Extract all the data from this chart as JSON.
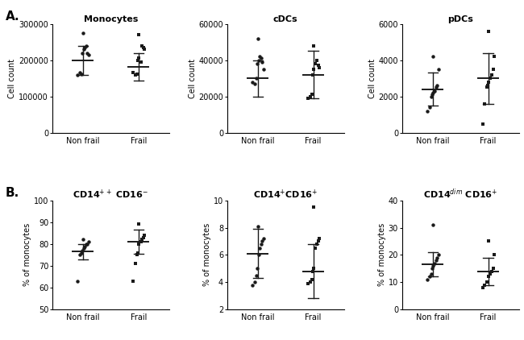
{
  "panel_A": {
    "Monocytes": {
      "Non frail": {
        "points": [
          160000,
          165000,
          162000,
          220000,
          230000,
          235000,
          240000,
          220000,
          215000,
          275000
        ],
        "mean": 200000,
        "sd": 40000
      },
      "Frail": {
        "points": [
          165000,
          160000,
          162000,
          200000,
          205000,
          195000,
          240000,
          235000,
          230000,
          270000
        ],
        "mean": 182000,
        "sd": 38000
      },
      "ylabel": "Cell count",
      "ylim": [
        0,
        300000
      ],
      "yticks": [
        0,
        100000,
        200000,
        300000
      ],
      "title": "Monocytes"
    },
    "cDCs": {
      "Non frail": {
        "points": [
          28000,
          27000,
          30000,
          38000,
          40000,
          42000,
          41000,
          39000,
          35000,
          52000
        ],
        "mean": 30000,
        "sd": 10000
      },
      "Frail": {
        "points": [
          19000,
          20000,
          21000,
          32000,
          35000,
          38000,
          40000,
          37000,
          36000,
          48000
        ],
        "mean": 32000,
        "sd": 13000
      },
      "ylabel": "Cell count",
      "ylim": [
        0,
        60000
      ],
      "yticks": [
        0,
        20000,
        40000,
        60000
      ],
      "title": "cDCs"
    },
    "pDCs": {
      "Non frail": {
        "points": [
          1200,
          1400,
          2000,
          2100,
          2200,
          2300,
          2500,
          2600,
          3500,
          4200
        ],
        "mean": 2400,
        "sd": 900
      },
      "Frail": {
        "points": [
          500,
          1600,
          2500,
          2600,
          2800,
          3000,
          3200,
          3500,
          4200,
          5600
        ],
        "mean": 3000,
        "sd": 1400
      },
      "ylabel": "Cell count",
      "ylim": [
        0,
        6000
      ],
      "yticks": [
        0,
        2000,
        4000,
        6000
      ],
      "title": "pDCs"
    }
  },
  "panel_B": {
    "CD14ppCD16m": {
      "Non frail": {
        "points": [
          63,
          75,
          76,
          77,
          78,
          79,
          80,
          80,
          81,
          82
        ],
        "mean": 76.5,
        "sd": 3.5
      },
      "Frail": {
        "points": [
          63,
          71,
          75,
          76,
          80,
          81,
          82,
          83,
          84,
          89
        ],
        "mean": 81.0,
        "sd": 5.5
      },
      "ylabel": "% of monocytes",
      "ylim": [
        50,
        100
      ],
      "yticks": [
        50,
        60,
        70,
        80,
        90,
        100
      ],
      "title": "CD14$^{++}$ CD16$^{-}$"
    },
    "CD14pCD16p": {
      "Non frail": {
        "points": [
          3.8,
          4.0,
          4.5,
          5.0,
          6.0,
          6.5,
          6.8,
          7.0,
          7.2,
          8.1
        ],
        "mean": 6.1,
        "sd": 1.8
      },
      "Frail": {
        "points": [
          3.9,
          4.0,
          4.2,
          4.8,
          5.0,
          6.5,
          6.8,
          7.0,
          7.2,
          9.5
        ],
        "mean": 4.8,
        "sd": 2.0
      },
      "ylabel": "% of monocytes",
      "ylim": [
        2,
        10
      ],
      "yticks": [
        2,
        4,
        6,
        8,
        10
      ],
      "title": "CD14$^{+}$CD16$^{+}$"
    },
    "CD14dimCD16p": {
      "Non frail": {
        "points": [
          11,
          12,
          13,
          15,
          16,
          17,
          18,
          19,
          20,
          31
        ],
        "mean": 16.5,
        "sd": 4.5
      },
      "Frail": {
        "points": [
          8,
          9,
          10,
          10,
          12,
          13,
          14,
          15,
          20,
          25
        ],
        "mean": 14.0,
        "sd": 5.0
      },
      "ylabel": "% of monocytes",
      "ylim": [
        0,
        40
      ],
      "yticks": [
        0,
        10,
        20,
        30,
        40
      ],
      "title": "CD14$^{dim}$ CD16$^{+}$"
    }
  },
  "label_A": "A.",
  "label_B": "B.",
  "dot_color": "#1a1a1a",
  "line_color": "#1a1a1a",
  "bg_color": "#ffffff",
  "jitter_nf": [
    -0.1,
    -0.05,
    -0.03,
    -0.01,
    0.01,
    0.03,
    0.06,
    0.08,
    0.1,
    0.0
  ],
  "jitter_f": [
    -0.1,
    -0.06,
    -0.03,
    -0.01,
    0.01,
    0.04,
    0.06,
    0.09,
    0.11,
    0.01
  ]
}
